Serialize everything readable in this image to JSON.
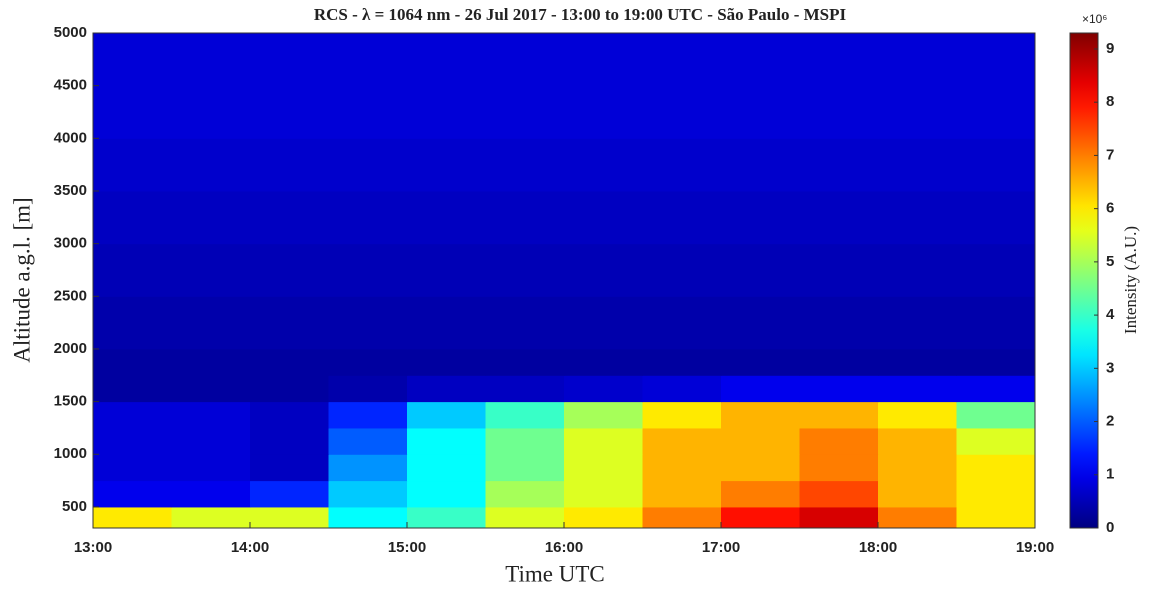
{
  "chart_data": {
    "type": "heatmap",
    "title": "RCS - λ = 1064 nm - 26 Jul 2017 - 13:00 to 19:00 UTC - São Paulo - MSPI",
    "x_label": "Time UTC",
    "y_label": "Altitude a.g.l. [m]",
    "colorbar_label": "Intensity (A.U.)",
    "colorbar_multiplier": "×10⁶",
    "colormap": "jet",
    "xlim": [
      13,
      19
    ],
    "xticks": [
      {
        "value": 13,
        "label": "13:00"
      },
      {
        "value": 14,
        "label": "14:00"
      },
      {
        "value": 15,
        "label": "15:00"
      },
      {
        "value": 16,
        "label": "16:00"
      },
      {
        "value": 17,
        "label": "17:00"
      },
      {
        "value": 18,
        "label": "18:00"
      },
      {
        "value": 19,
        "label": "19:00"
      }
    ],
    "ylim": [
      300,
      5000
    ],
    "yticks": [
      500,
      1000,
      1500,
      2000,
      2500,
      3000,
      3500,
      4000,
      4500,
      5000
    ],
    "clim": [
      0,
      9.3
    ],
    "cticks": [
      0,
      1,
      2,
      3,
      4,
      5,
      6,
      7,
      8,
      9
    ],
    "x_edges": [
      13,
      13.5,
      14,
      14.5,
      15,
      15.5,
      16,
      16.5,
      17,
      17.5,
      18,
      18.5,
      19
    ],
    "y_edges": [
      300,
      500,
      750,
      1000,
      1250,
      1500,
      1750,
      2000,
      2500,
      3000,
      3500,
      4000,
      4500,
      5000
    ],
    "z": [
      [
        6,
        5.5,
        5.5,
        3.5,
        4,
        5.5,
        6,
        7,
        8,
        8.5,
        7,
        6
      ],
      [
        1,
        1,
        1.5,
        3,
        3.5,
        5,
        5.5,
        6.5,
        7,
        7.5,
        6.5,
        6
      ],
      [
        0.8,
        0.8,
        0.6,
        2.5,
        3.5,
        4.5,
        5.5,
        6.5,
        6.5,
        7,
        6.5,
        6
      ],
      [
        0.8,
        0.8,
        0.6,
        2,
        3.5,
        4.5,
        5.5,
        6.5,
        6.5,
        7,
        6.5,
        5.5
      ],
      [
        0.8,
        0.8,
        0.6,
        1.5,
        3,
        4,
        5,
        6,
        6.5,
        6.5,
        6,
        4.5
      ],
      [
        0.3,
        0.3,
        0.3,
        0.4,
        0.6,
        0.6,
        0.7,
        0.8,
        1,
        1,
        1,
        1
      ],
      [
        0.3,
        0.3,
        0.3,
        0.3,
        0.3,
        0.3,
        0.3,
        0.3,
        0.3,
        0.3,
        0.3,
        0.3
      ],
      [
        0.4,
        0.4,
        0.4,
        0.4,
        0.4,
        0.4,
        0.4,
        0.4,
        0.4,
        0.4,
        0.4,
        0.4
      ],
      [
        0.5,
        0.5,
        0.5,
        0.5,
        0.5,
        0.5,
        0.5,
        0.5,
        0.5,
        0.5,
        0.5,
        0.5
      ],
      [
        0.6,
        0.6,
        0.6,
        0.6,
        0.6,
        0.6,
        0.6,
        0.6,
        0.6,
        0.6,
        0.6,
        0.6
      ],
      [
        0.7,
        0.7,
        0.7,
        0.7,
        0.7,
        0.7,
        0.7,
        0.7,
        0.7,
        0.7,
        0.7,
        0.7
      ],
      [
        0.8,
        0.8,
        0.8,
        0.8,
        0.8,
        0.8,
        0.8,
        0.8,
        0.8,
        0.8,
        0.8,
        0.8
      ],
      [
        0.8,
        0.8,
        0.8,
        0.8,
        0.8,
        0.8,
        0.8,
        0.8,
        0.8,
        0.8,
        0.8,
        0.8
      ]
    ]
  }
}
